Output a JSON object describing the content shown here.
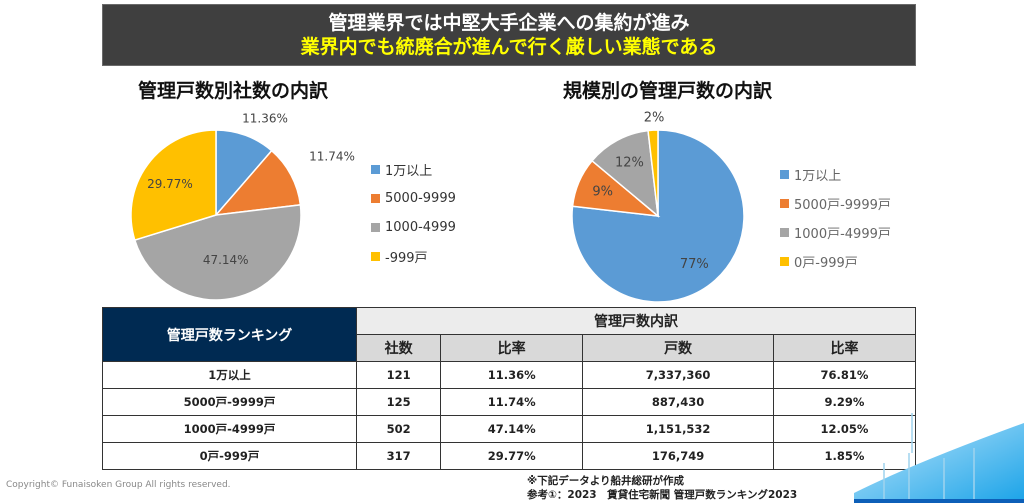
{
  "banner": {
    "line1": "管理業界では中堅大手企業への集約が進み",
    "line2": "業界内でも統廃合が進んで行く厳しい業態である"
  },
  "colors": {
    "blue": "#5b9bd5",
    "orange": "#ed7d31",
    "gray": "#a5a5a5",
    "yellow": "#ffc000",
    "navy": "#002a52",
    "banner_bg": "#3f3f3f",
    "banner_accent": "#ffff00"
  },
  "chart_data": [
    {
      "type": "pie",
      "title": "管理戸数別社数の内訳",
      "categories": [
        "1万以上",
        "5000-9999",
        "1000-4999",
        "-999戸"
      ],
      "values": [
        11.36,
        11.74,
        47.14,
        29.77
      ],
      "labels": [
        "11.36%",
        "11.74%",
        "47.14%",
        "29.77%"
      ],
      "legend": "right"
    },
    {
      "type": "pie",
      "title": "規模別の管理戸数の内訳",
      "categories": [
        "1万以上",
        "5000戸-9999戸",
        "1000戸-4999戸",
        "0戸-999戸"
      ],
      "values": [
        76.81,
        9.29,
        12.05,
        1.85
      ],
      "labels": [
        "77%",
        "9%",
        "12%",
        "2%"
      ],
      "legend": "right"
    }
  ],
  "table": {
    "corner": "管理戸数ランキング",
    "group_header": "管理戸数内訳",
    "columns": [
      "社数",
      "比率",
      "戸数",
      "比率"
    ],
    "rows": [
      {
        "label": "1万以上",
        "cells": [
          "121",
          "11.36%",
          "7,337,360",
          "76.81%"
        ]
      },
      {
        "label": "5000戸-9999戸",
        "cells": [
          "125",
          "11.74%",
          "887,430",
          "9.29%"
        ]
      },
      {
        "label": "1000戸-4999戸",
        "cells": [
          "502",
          "47.14%",
          "1,151,532",
          "12.05%"
        ]
      },
      {
        "label": "0戸-999戸",
        "cells": [
          "317",
          "29.77%",
          "176,749",
          "1.85%"
        ]
      }
    ]
  },
  "footer": {
    "copyright": "Copyright© Funaisoken Group All rights reserved.",
    "note1": "※下記データより船井総研が作成",
    "note2": "参考①：2023　賃貸住宅新聞 管理戸数ランキング2023"
  }
}
